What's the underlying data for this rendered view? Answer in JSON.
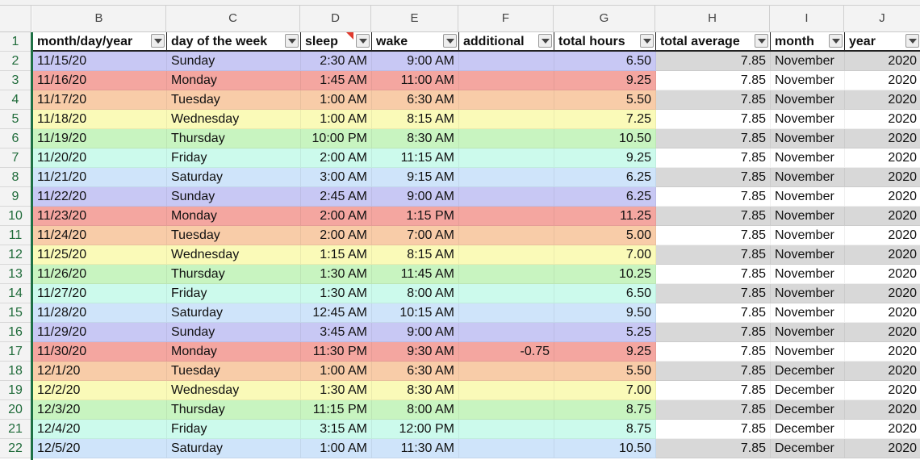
{
  "columns": [
    {
      "letter": "B",
      "header": "month/day/year"
    },
    {
      "letter": "C",
      "header": "day of the week"
    },
    {
      "letter": "D",
      "header": "sleep"
    },
    {
      "letter": "E",
      "header": "wake"
    },
    {
      "letter": "F",
      "header": "additional"
    },
    {
      "letter": "G",
      "header": "total hours"
    },
    {
      "letter": "H",
      "header": "total average"
    },
    {
      "letter": "I",
      "header": "month"
    },
    {
      "letter": "J",
      "header": "year"
    }
  ],
  "header_row_number": "1",
  "colors": {
    "Sunday": "#c8c8f4",
    "Monday": "#f4a6a0",
    "Tuesday": "#f8cca8",
    "Wednesday": "#fafab8",
    "Thursday": "#c8f4c0",
    "Friday": "#ccfaec",
    "Saturday": "#cfe4fa",
    "gray_band": "#d8d8d8",
    "white_band": "#ffffff",
    "accent_green": "#1e7145",
    "comment_red": "#e03a2e"
  },
  "rows": [
    {
      "n": "2",
      "date": "11/15/20",
      "day": "Sunday",
      "sleep": "2:30 AM",
      "wake": "9:00 AM",
      "additional": "",
      "total": "6.50",
      "avg": "7.85",
      "month": "November",
      "year": "2020"
    },
    {
      "n": "3",
      "date": "11/16/20",
      "day": "Monday",
      "sleep": "1:45 AM",
      "wake": "11:00 AM",
      "additional": "",
      "total": "9.25",
      "avg": "7.85",
      "month": "November",
      "year": "2020"
    },
    {
      "n": "4",
      "date": "11/17/20",
      "day": "Tuesday",
      "sleep": "1:00 AM",
      "wake": "6:30 AM",
      "additional": "",
      "total": "5.50",
      "avg": "7.85",
      "month": "November",
      "year": "2020"
    },
    {
      "n": "5",
      "date": "11/18/20",
      "day": "Wednesday",
      "sleep": "1:00 AM",
      "wake": "8:15 AM",
      "additional": "",
      "total": "7.25",
      "avg": "7.85",
      "month": "November",
      "year": "2020"
    },
    {
      "n": "6",
      "date": "11/19/20",
      "day": "Thursday",
      "sleep": "10:00 PM",
      "wake": "8:30 AM",
      "additional": "",
      "total": "10.50",
      "avg": "7.85",
      "month": "November",
      "year": "2020"
    },
    {
      "n": "7",
      "date": "11/20/20",
      "day": "Friday",
      "sleep": "2:00 AM",
      "wake": "11:15 AM",
      "additional": "",
      "total": "9.25",
      "avg": "7.85",
      "month": "November",
      "year": "2020"
    },
    {
      "n": "8",
      "date": "11/21/20",
      "day": "Saturday",
      "sleep": "3:00 AM",
      "wake": "9:15 AM",
      "additional": "",
      "total": "6.25",
      "avg": "7.85",
      "month": "November",
      "year": "2020"
    },
    {
      "n": "9",
      "date": "11/22/20",
      "day": "Sunday",
      "sleep": "2:45 AM",
      "wake": "9:00 AM",
      "additional": "",
      "total": "6.25",
      "avg": "7.85",
      "month": "November",
      "year": "2020"
    },
    {
      "n": "10",
      "date": "11/23/20",
      "day": "Monday",
      "sleep": "2:00 AM",
      "wake": "1:15 PM",
      "additional": "",
      "total": "11.25",
      "avg": "7.85",
      "month": "November",
      "year": "2020"
    },
    {
      "n": "11",
      "date": "11/24/20",
      "day": "Tuesday",
      "sleep": "2:00 AM",
      "wake": "7:00 AM",
      "additional": "",
      "total": "5.00",
      "avg": "7.85",
      "month": "November",
      "year": "2020"
    },
    {
      "n": "12",
      "date": "11/25/20",
      "day": "Wednesday",
      "sleep": "1:15 AM",
      "wake": "8:15 AM",
      "additional": "",
      "total": "7.00",
      "avg": "7.85",
      "month": "November",
      "year": "2020"
    },
    {
      "n": "13",
      "date": "11/26/20",
      "day": "Thursday",
      "sleep": "1:30 AM",
      "wake": "11:45 AM",
      "additional": "",
      "total": "10.25",
      "avg": "7.85",
      "month": "November",
      "year": "2020"
    },
    {
      "n": "14",
      "date": "11/27/20",
      "day": "Friday",
      "sleep": "1:30 AM",
      "wake": "8:00 AM",
      "additional": "",
      "total": "6.50",
      "avg": "7.85",
      "month": "November",
      "year": "2020"
    },
    {
      "n": "15",
      "date": "11/28/20",
      "day": "Saturday",
      "sleep": "12:45 AM",
      "wake": "10:15 AM",
      "additional": "",
      "total": "9.50",
      "avg": "7.85",
      "month": "November",
      "year": "2020"
    },
    {
      "n": "16",
      "date": "11/29/20",
      "day": "Sunday",
      "sleep": "3:45 AM",
      "wake": "9:00 AM",
      "additional": "",
      "total": "5.25",
      "avg": "7.85",
      "month": "November",
      "year": "2020"
    },
    {
      "n": "17",
      "date": "11/30/20",
      "day": "Monday",
      "sleep": "11:30 PM",
      "wake": "9:30 AM",
      "additional": "-0.75",
      "total": "9.25",
      "avg": "7.85",
      "month": "November",
      "year": "2020"
    },
    {
      "n": "18",
      "date": "12/1/20",
      "day": "Tuesday",
      "sleep": "1:00 AM",
      "wake": "6:30 AM",
      "additional": "",
      "total": "5.50",
      "avg": "7.85",
      "month": "December",
      "year": "2020"
    },
    {
      "n": "19",
      "date": "12/2/20",
      "day": "Wednesday",
      "sleep": "1:30 AM",
      "wake": "8:30 AM",
      "additional": "",
      "total": "7.00",
      "avg": "7.85",
      "month": "December",
      "year": "2020"
    },
    {
      "n": "20",
      "date": "12/3/20",
      "day": "Thursday",
      "sleep": "11:15 PM",
      "wake": "8:00 AM",
      "additional": "",
      "total": "8.75",
      "avg": "7.85",
      "month": "December",
      "year": "2020"
    },
    {
      "n": "21",
      "date": "12/4/20",
      "day": "Friday",
      "sleep": "3:15 AM",
      "wake": "12:00 PM",
      "additional": "",
      "total": "8.75",
      "avg": "7.85",
      "month": "December",
      "year": "2020"
    },
    {
      "n": "22",
      "date": "12/5/20",
      "day": "Saturday",
      "sleep": "1:00 AM",
      "wake": "11:30 AM",
      "additional": "",
      "total": "10.50",
      "avg": "7.85",
      "month": "December",
      "year": "2020"
    }
  ]
}
